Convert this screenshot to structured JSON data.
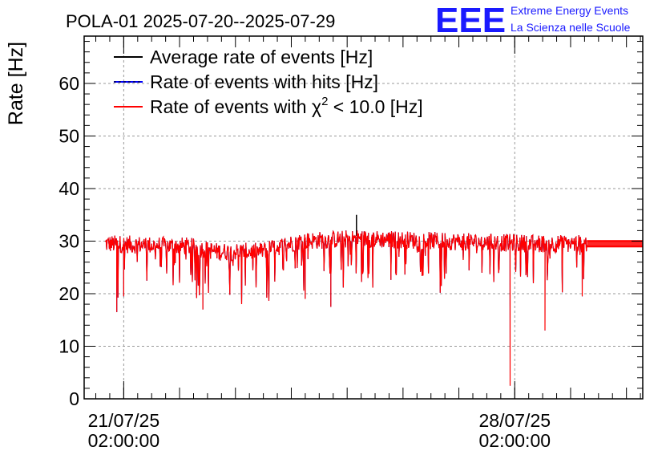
{
  "chart_data": {
    "type": "line",
    "title": "POLA-01 2025-07-20--2025-07-29",
    "ylabel": "Rate [Hz]",
    "xlabel": "",
    "ylim": [
      0,
      69
    ],
    "yticks": [
      "0",
      "10",
      "20",
      "30",
      "40",
      "50",
      "60"
    ],
    "xticks": [
      {
        "date": "21/07/25",
        "time": "02:00:00"
      },
      {
        "date": "28/07/25",
        "time": "02:00:00"
      }
    ],
    "grid": true,
    "legend_position": "top-left",
    "logo": {
      "mark": "EEE",
      "line1": "Extreme Energy Events",
      "line2": "La Scienza nelle Scuole"
    },
    "series": [
      {
        "name": "Average rate of events [Hz]",
        "color": "#000000"
      },
      {
        "name": "Rate of events with hits [Hz]",
        "color": "#0000ff"
      },
      {
        "name_prefix": "Rate of events with ",
        "name_symbol": "χ",
        "name_sup": "2",
        "name_suffix": " < 10.0 [Hz]",
        "color": "#ff0000"
      }
    ],
    "x_start": "2025-07-20 09:00",
    "x_end": "2025-07-30 09:00",
    "data_start": "2025-07-20 18:00",
    "data_end": "2025-07-29 09:00",
    "baseline_points": [
      {
        "x": "2025-07-20 18:00",
        "y": 29.5
      },
      {
        "x": "2025-07-22 06:00",
        "y": 29.0
      },
      {
        "x": "2025-07-22 18:00",
        "y": 28.0
      },
      {
        "x": "2025-07-23 12:00",
        "y": 28.0
      },
      {
        "x": "2025-07-24 06:00",
        "y": 30.0
      },
      {
        "x": "2025-07-25 06:00",
        "y": 30.5
      },
      {
        "x": "2025-07-26 18:00",
        "y": 30.0
      },
      {
        "x": "2025-07-28 12:00",
        "y": 29.5
      },
      {
        "x": "2025-07-29 09:00",
        "y": 29.5
      }
    ],
    "noticeable_dips": [
      {
        "x": "2025-07-21 02:00",
        "y": 19.5
      },
      {
        "x": "2025-07-20 23:00",
        "y": 16.5
      },
      {
        "x": "2025-07-22 12:00",
        "y": 17.0
      },
      {
        "x": "2025-07-24 08:00",
        "y": 19.0
      },
      {
        "x": "2025-07-24 19:00",
        "y": 17.5
      },
      {
        "x": "2025-07-28 00:00",
        "y": 2.5
      },
      {
        "x": "2025-07-28 15:00",
        "y": 13.0
      },
      {
        "x": "2025-07-29 07:00",
        "y": 19.5
      }
    ],
    "peak": {
      "x": "2025-07-25 06:00",
      "y": 35.0
    },
    "flat_lines_after_end": [
      {
        "y": 29.0,
        "color": "#ff0000"
      },
      {
        "y": 30.0,
        "color": "#ff0000"
      }
    ]
  }
}
